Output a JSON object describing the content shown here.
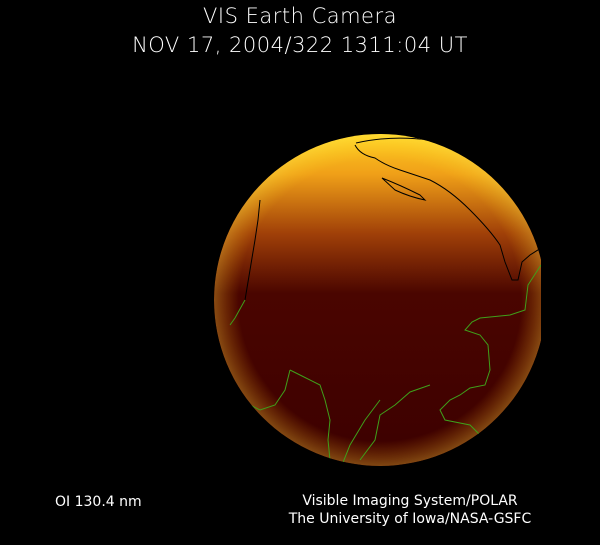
{
  "header": {
    "title": "VIS Earth Camera",
    "timestamp": "NOV 17, 2004/322 1311:04 UT"
  },
  "footer": {
    "wavelength": "OI  130.4 nm",
    "instrument": "Visible Imaging System/POLAR",
    "institution": "The University of Iowa/NASA-GSFC"
  },
  "image": {
    "subject": "Earth far-ultraviolet airglow image",
    "colors": {
      "bright": "#ffd21a",
      "mid": "#c8620a",
      "dark": "#3c0000",
      "coastline_day": "#000000",
      "coastline_night": "#3fa01a"
    }
  }
}
